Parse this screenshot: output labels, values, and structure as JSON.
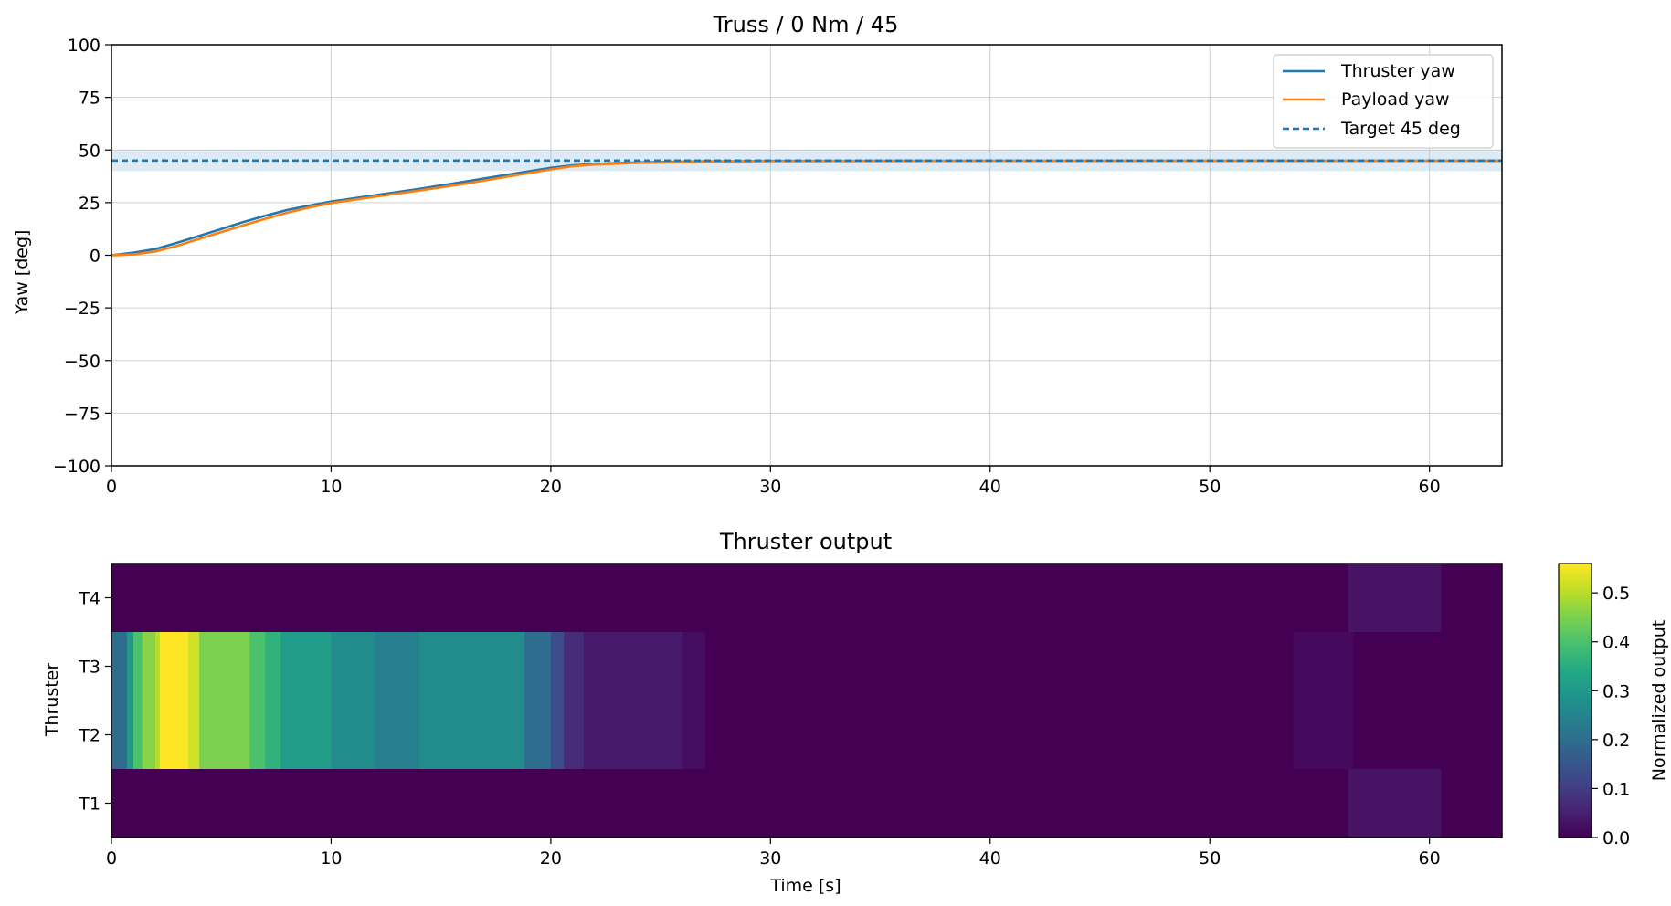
{
  "chart_data": [
    {
      "type": "line",
      "title": "Truss / 0 Nm / 45",
      "xlabel": "",
      "ylabel": "Yaw [deg]",
      "xlim": [
        0,
        63.3
      ],
      "ylim": [
        -100,
        100
      ],
      "xticks": [
        0,
        10,
        20,
        30,
        40,
        50,
        60
      ],
      "yticks": [
        100,
        75,
        50,
        25,
        0,
        -25,
        -50,
        -75,
        -100
      ],
      "ytick_labels": [
        "100",
        "75",
        "50",
        "25",
        "0",
        "−25",
        "−50",
        "−75",
        "−100"
      ],
      "grid": true,
      "legend_position": "top-right",
      "tolerance_band": [
        40,
        50
      ],
      "series": [
        {
          "name": "Thruster yaw",
          "color": "#1f77b4",
          "style": "solid",
          "x": [
            0,
            1,
            2,
            3,
            4,
            5,
            6,
            7,
            8,
            9,
            10,
            12,
            14,
            16,
            18,
            20,
            21,
            22,
            24,
            26,
            28,
            30,
            40,
            50,
            63.3
          ],
          "y": [
            0,
            1.2,
            3,
            6,
            9.2,
            12.5,
            15.8,
            18.8,
            21.5,
            23.6,
            25.5,
            28.5,
            31.5,
            34.8,
            38.2,
            41.5,
            42.7,
            43.4,
            44.1,
            44.5,
            44.7,
            44.8,
            44.9,
            44.9,
            44.9
          ]
        },
        {
          "name": "Payload yaw",
          "color": "#ff7f0e",
          "style": "solid",
          "x": [
            0,
            1,
            2,
            3,
            4,
            5,
            6,
            7,
            8,
            9,
            10,
            12,
            14,
            16,
            18,
            20,
            21,
            22,
            24,
            26,
            28,
            30,
            40,
            50,
            63.3
          ],
          "y": [
            0,
            0.4,
            1.8,
            4.5,
            7.8,
            11,
            14.2,
            17.3,
            20.2,
            22.7,
            24.8,
            27.8,
            30.7,
            33.8,
            37.3,
            40.8,
            42.3,
            43.1,
            43.9,
            44.3,
            44.6,
            44.7,
            44.8,
            44.9,
            44.9
          ]
        },
        {
          "name": "Target 45 deg",
          "color": "#1f77b4",
          "style": "dashed",
          "x": [
            0,
            63.3
          ],
          "y": [
            45,
            45
          ]
        }
      ]
    },
    {
      "type": "heatmap",
      "title": "Thruster output",
      "xlabel": "Time [s]",
      "ylabel": "Thruster",
      "xlim": [
        0,
        63.3
      ],
      "xticks": [
        0,
        10,
        20,
        30,
        40,
        50,
        60
      ],
      "rows": [
        "T4",
        "T3",
        "T2",
        "T1"
      ],
      "colorbar": {
        "label": "Normalized output",
        "min": 0,
        "max": 0.56,
        "ticks": [
          0.0,
          0.1,
          0.2,
          0.3,
          0.4,
          0.5
        ],
        "tick_labels": [
          "0.0",
          "0.1",
          "0.2",
          "0.3",
          "0.4",
          "0.5"
        ],
        "colormap": "viridis"
      },
      "segments": [
        {
          "rows": [
            "T3",
            "T2"
          ],
          "x0": 0,
          "x1": 0.7,
          "value": 0.2
        },
        {
          "rows": [
            "T3",
            "T2"
          ],
          "x0": 0.7,
          "x1": 1.0,
          "value": 0.3
        },
        {
          "rows": [
            "T3",
            "T2"
          ],
          "x0": 1.0,
          "x1": 1.4,
          "value": 0.4
        },
        {
          "rows": [
            "T3",
            "T2"
          ],
          "x0": 1.4,
          "x1": 2.0,
          "value": 0.46
        },
        {
          "rows": [
            "T3",
            "T2"
          ],
          "x0": 2.0,
          "x1": 2.2,
          "value": 0.5
        },
        {
          "rows": [
            "T3",
            "T2"
          ],
          "x0": 2.2,
          "x1": 3.5,
          "value": 0.56
        },
        {
          "rows": [
            "T3",
            "T2"
          ],
          "x0": 3.5,
          "x1": 4.0,
          "value": 0.52
        },
        {
          "rows": [
            "T3",
            "T2"
          ],
          "x0": 4.0,
          "x1": 6.3,
          "value": 0.45
        },
        {
          "rows": [
            "T3",
            "T2"
          ],
          "x0": 6.3,
          "x1": 7.0,
          "value": 0.4
        },
        {
          "rows": [
            "T3",
            "T2"
          ],
          "x0": 7.0,
          "x1": 7.7,
          "value": 0.36
        },
        {
          "rows": [
            "T3",
            "T2"
          ],
          "x0": 7.7,
          "x1": 10.0,
          "value": 0.31
        },
        {
          "rows": [
            "T3",
            "T2"
          ],
          "x0": 10.0,
          "x1": 12.0,
          "value": 0.27
        },
        {
          "rows": [
            "T3",
            "T2"
          ],
          "x0": 12.0,
          "x1": 14.0,
          "value": 0.24
        },
        {
          "rows": [
            "T3",
            "T2"
          ],
          "x0": 14.0,
          "x1": 18.8,
          "value": 0.27
        },
        {
          "rows": [
            "T3",
            "T2"
          ],
          "x0": 18.8,
          "x1": 20.0,
          "value": 0.2
        },
        {
          "rows": [
            "T3",
            "T2"
          ],
          "x0": 20.0,
          "x1": 20.6,
          "value": 0.13
        },
        {
          "rows": [
            "T3",
            "T2"
          ],
          "x0": 20.6,
          "x1": 21.5,
          "value": 0.07
        },
        {
          "rows": [
            "T3",
            "T2"
          ],
          "x0": 21.5,
          "x1": 26.0,
          "value": 0.04
        },
        {
          "rows": [
            "T3",
            "T2"
          ],
          "x0": 26.0,
          "x1": 27.0,
          "value": 0.02
        },
        {
          "rows": [
            "T3",
            "T2"
          ],
          "x0": 53.8,
          "x1": 56.5,
          "value": 0.015
        },
        {
          "rows": [
            "T4",
            "T1"
          ],
          "x0": 56.3,
          "x1": 60.5,
          "value": 0.03
        }
      ]
    }
  ]
}
